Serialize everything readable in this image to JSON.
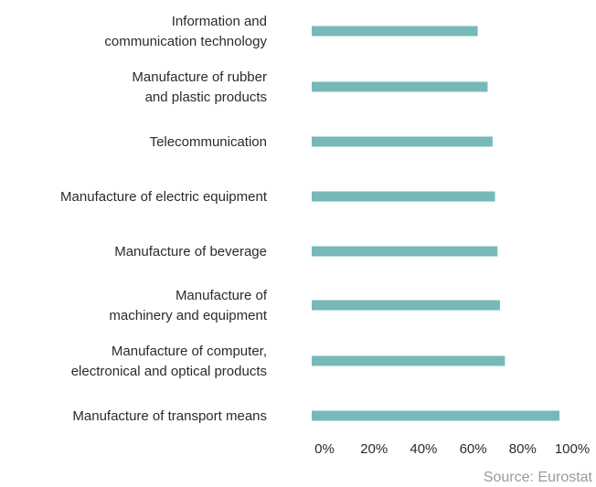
{
  "chart_data": {
    "type": "bar",
    "orientation": "horizontal",
    "categories": [
      [
        "Information and",
        "communication technology"
      ],
      [
        "Manufacture of rubber",
        "and plastic products"
      ],
      [
        "Telecommunication"
      ],
      [
        "Manufacture of electric equipment"
      ],
      [
        "Manufacture of beverage"
      ],
      [
        "Manufacture of",
        "machinery and equipment"
      ],
      [
        "Manufacture of computer,",
        "electronical and optical products"
      ],
      [
        "Manufacture of transport means"
      ]
    ],
    "values": [
      67,
      71,
      73,
      74,
      75,
      76,
      78,
      100
    ],
    "xlim": [
      0,
      100
    ],
    "x_ticks": [
      "0%",
      "20%",
      "40%",
      "60%",
      "80%",
      "100%"
    ],
    "x_tick_values": [
      0,
      20,
      40,
      60,
      80,
      100
    ],
    "bar_color": "#76b9b8",
    "grid": false,
    "legend": "none",
    "source": "Source: Eurostat"
  }
}
